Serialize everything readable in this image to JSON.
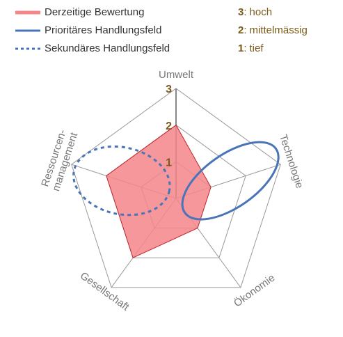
{
  "chart_data": {
    "type": "radar",
    "categories": [
      "Umwelt",
      "Technologie",
      "Ökonomie",
      "Gesellschaft",
      "Ressourcen-\nmanagement"
    ],
    "series": [
      {
        "name": "Derzeitige Bewertung",
        "color": "#f4868a",
        "values": [
          2,
          1,
          1,
          2,
          2
        ]
      }
    ],
    "highlights": [
      {
        "name": "Prioritäres Handlungsfeld",
        "color": "#4a74b8",
        "style": "solid",
        "category": 1
      },
      {
        "name": "Sekundäres Handlungsfeld",
        "color": "#4a74b8",
        "style": "dashed",
        "category": 4
      }
    ],
    "rlim": [
      0,
      3
    ],
    "rticks": [
      1,
      2,
      3
    ],
    "grid": true,
    "scale_key": {
      "separator": ":",
      "entries": [
        {
          "value": 3,
          "label": "hoch"
        },
        {
          "value": 2,
          "label": "mittelmässig"
        },
        {
          "value": 1,
          "label": "tief"
        }
      ]
    }
  }
}
